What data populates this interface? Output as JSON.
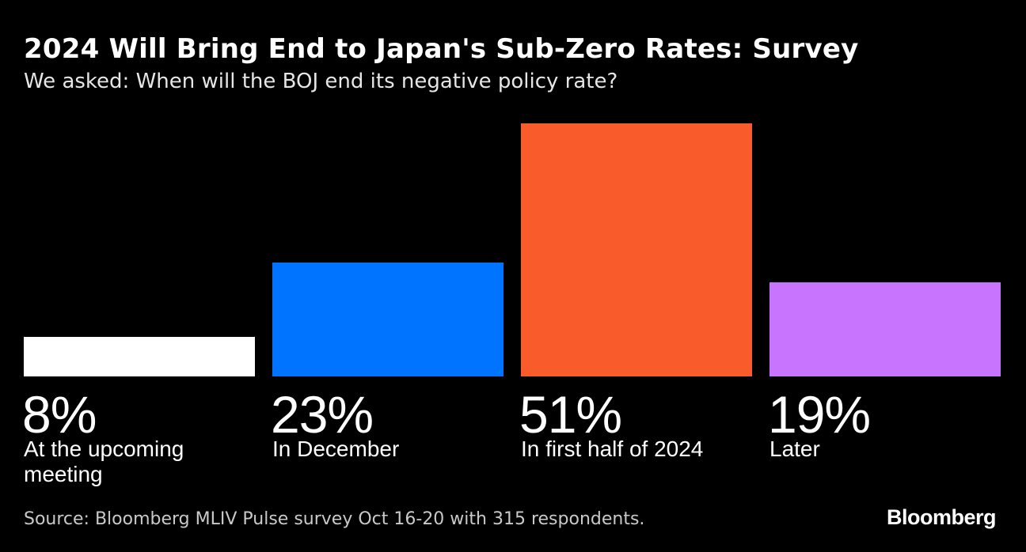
{
  "header": {
    "title": "2024 Will Bring End to Japan's Sub-Zero Rates: Survey",
    "subtitle": "We asked: When will the BOJ end its negative policy rate?"
  },
  "chart_data": {
    "type": "bar",
    "categories": [
      "At the upcoming meeting",
      "In December",
      "In first half of 2024",
      "Later"
    ],
    "values": [
      8,
      23,
      51,
      19
    ],
    "value_labels": [
      "8%",
      "23%",
      "51%",
      "19%"
    ],
    "colors": [
      "#ffffff",
      "#0073ff",
      "#fa5b2b",
      "#c874ff"
    ],
    "unit": "%",
    "ylim": [
      0,
      51
    ],
    "grid": false,
    "legend": "none",
    "title": "2024 Will Bring End to Japan's Sub-Zero Rates: Survey",
    "subtitle": "We asked: When will the BOJ end its negative policy rate?"
  },
  "footer": {
    "source": "Source: Bloomberg MLIV Pulse survey Oct 16-20 with 315 respondents.",
    "brand": "Bloomberg"
  }
}
